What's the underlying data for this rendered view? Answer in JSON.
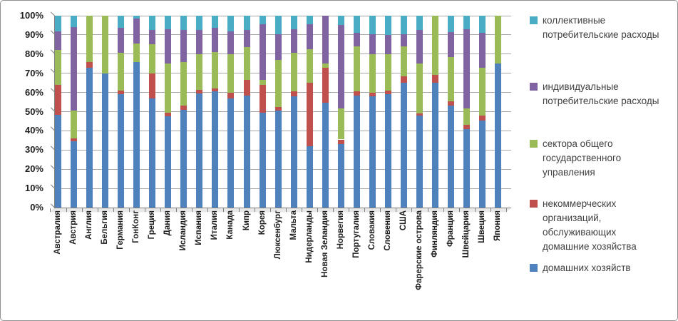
{
  "chart_data": {
    "type": "bar",
    "subtype": "stacked-100-percent-column",
    "title": "",
    "xlabel": "",
    "ylabel": "",
    "grid": true,
    "legend_position": "right",
    "y_axis": {
      "min": 0,
      "max": 100,
      "ticks": [
        "0%",
        "10%",
        "20%",
        "30%",
        "40%",
        "50%",
        "60%",
        "70%",
        "80%",
        "90%",
        "100%"
      ]
    },
    "categories": [
      "Австралия",
      "Австрия",
      "Англия",
      "Бельгия",
      "Германия",
      "ГонКонг",
      "Греция",
      "Дания",
      "Исландия",
      "Испания",
      "Италия",
      "Канада",
      "Кипр",
      "Корея",
      "Люксенбург",
      "Мальта",
      "Нидерланды",
      "Новая Зеландия",
      "Норвегия",
      "Португалия",
      "Словакия",
      "Словения",
      "США",
      "Фарерские острова",
      "Финляндия",
      "Франция",
      "Швейцария",
      "Швеция",
      "Япония"
    ],
    "series": [
      {
        "name": "домашних хозяйств",
        "color": "#4f81bd",
        "values": [
          48.5,
          34.5,
          73,
          70,
          59,
          76,
          57,
          47.5,
          51,
          59.5,
          60.5,
          57,
          58.5,
          49.5,
          50.5,
          58,
          32,
          54.5,
          33,
          58.5,
          58,
          59,
          65,
          48,
          65,
          53,
          41,
          45.5,
          75
        ]
      },
      {
        "name": "некоммерческих организаций, обслуживающих домашние хозяйства",
        "color": "#c0504d",
        "values": [
          15.5,
          1.5,
          3,
          0,
          2,
          0,
          13,
          2,
          2,
          2,
          1.5,
          3,
          8,
          14.5,
          2,
          2.5,
          33,
          18.5,
          2.5,
          2,
          2,
          2,
          3.5,
          1,
          4,
          2.5,
          2,
          2.5,
          0
        ]
      },
      {
        "name": "сектора общего государственного управления",
        "color": "#9bbb59",
        "values": [
          18,
          14.5,
          24,
          30,
          19.5,
          9.5,
          15,
          25.5,
          23,
          18.5,
          19,
          20,
          17,
          2.5,
          24.5,
          20,
          17.5,
          2,
          16,
          23.5,
          20,
          19,
          15.5,
          26,
          31,
          23,
          8.5,
          25,
          25
        ]
      },
      {
        "name": "индивидуальные потребительские расходы",
        "color": "#8064a2",
        "values": [
          10,
          43.5,
          0,
          0,
          13,
          13,
          7.5,
          18,
          16.5,
          12.5,
          12.5,
          12,
          9,
          29,
          13.5,
          12.5,
          13,
          25,
          43.5,
          7,
          10.5,
          10,
          6.5,
          17.5,
          0,
          13,
          41.5,
          18,
          0
        ]
      },
      {
        "name": "коллективные потребительские расходы",
        "color": "#4bacc6",
        "values": [
          8,
          6,
          0,
          0,
          6.5,
          1.5,
          7.5,
          7,
          7.5,
          7.5,
          6.5,
          8,
          7.5,
          4.5,
          9.5,
          7,
          4.5,
          0,
          5,
          9,
          9.5,
          10,
          9.5,
          7.5,
          0,
          8.5,
          7,
          9,
          0
        ]
      }
    ],
    "legend": {
      "series_order": [
        4,
        3,
        2,
        1,
        0
      ]
    }
  }
}
